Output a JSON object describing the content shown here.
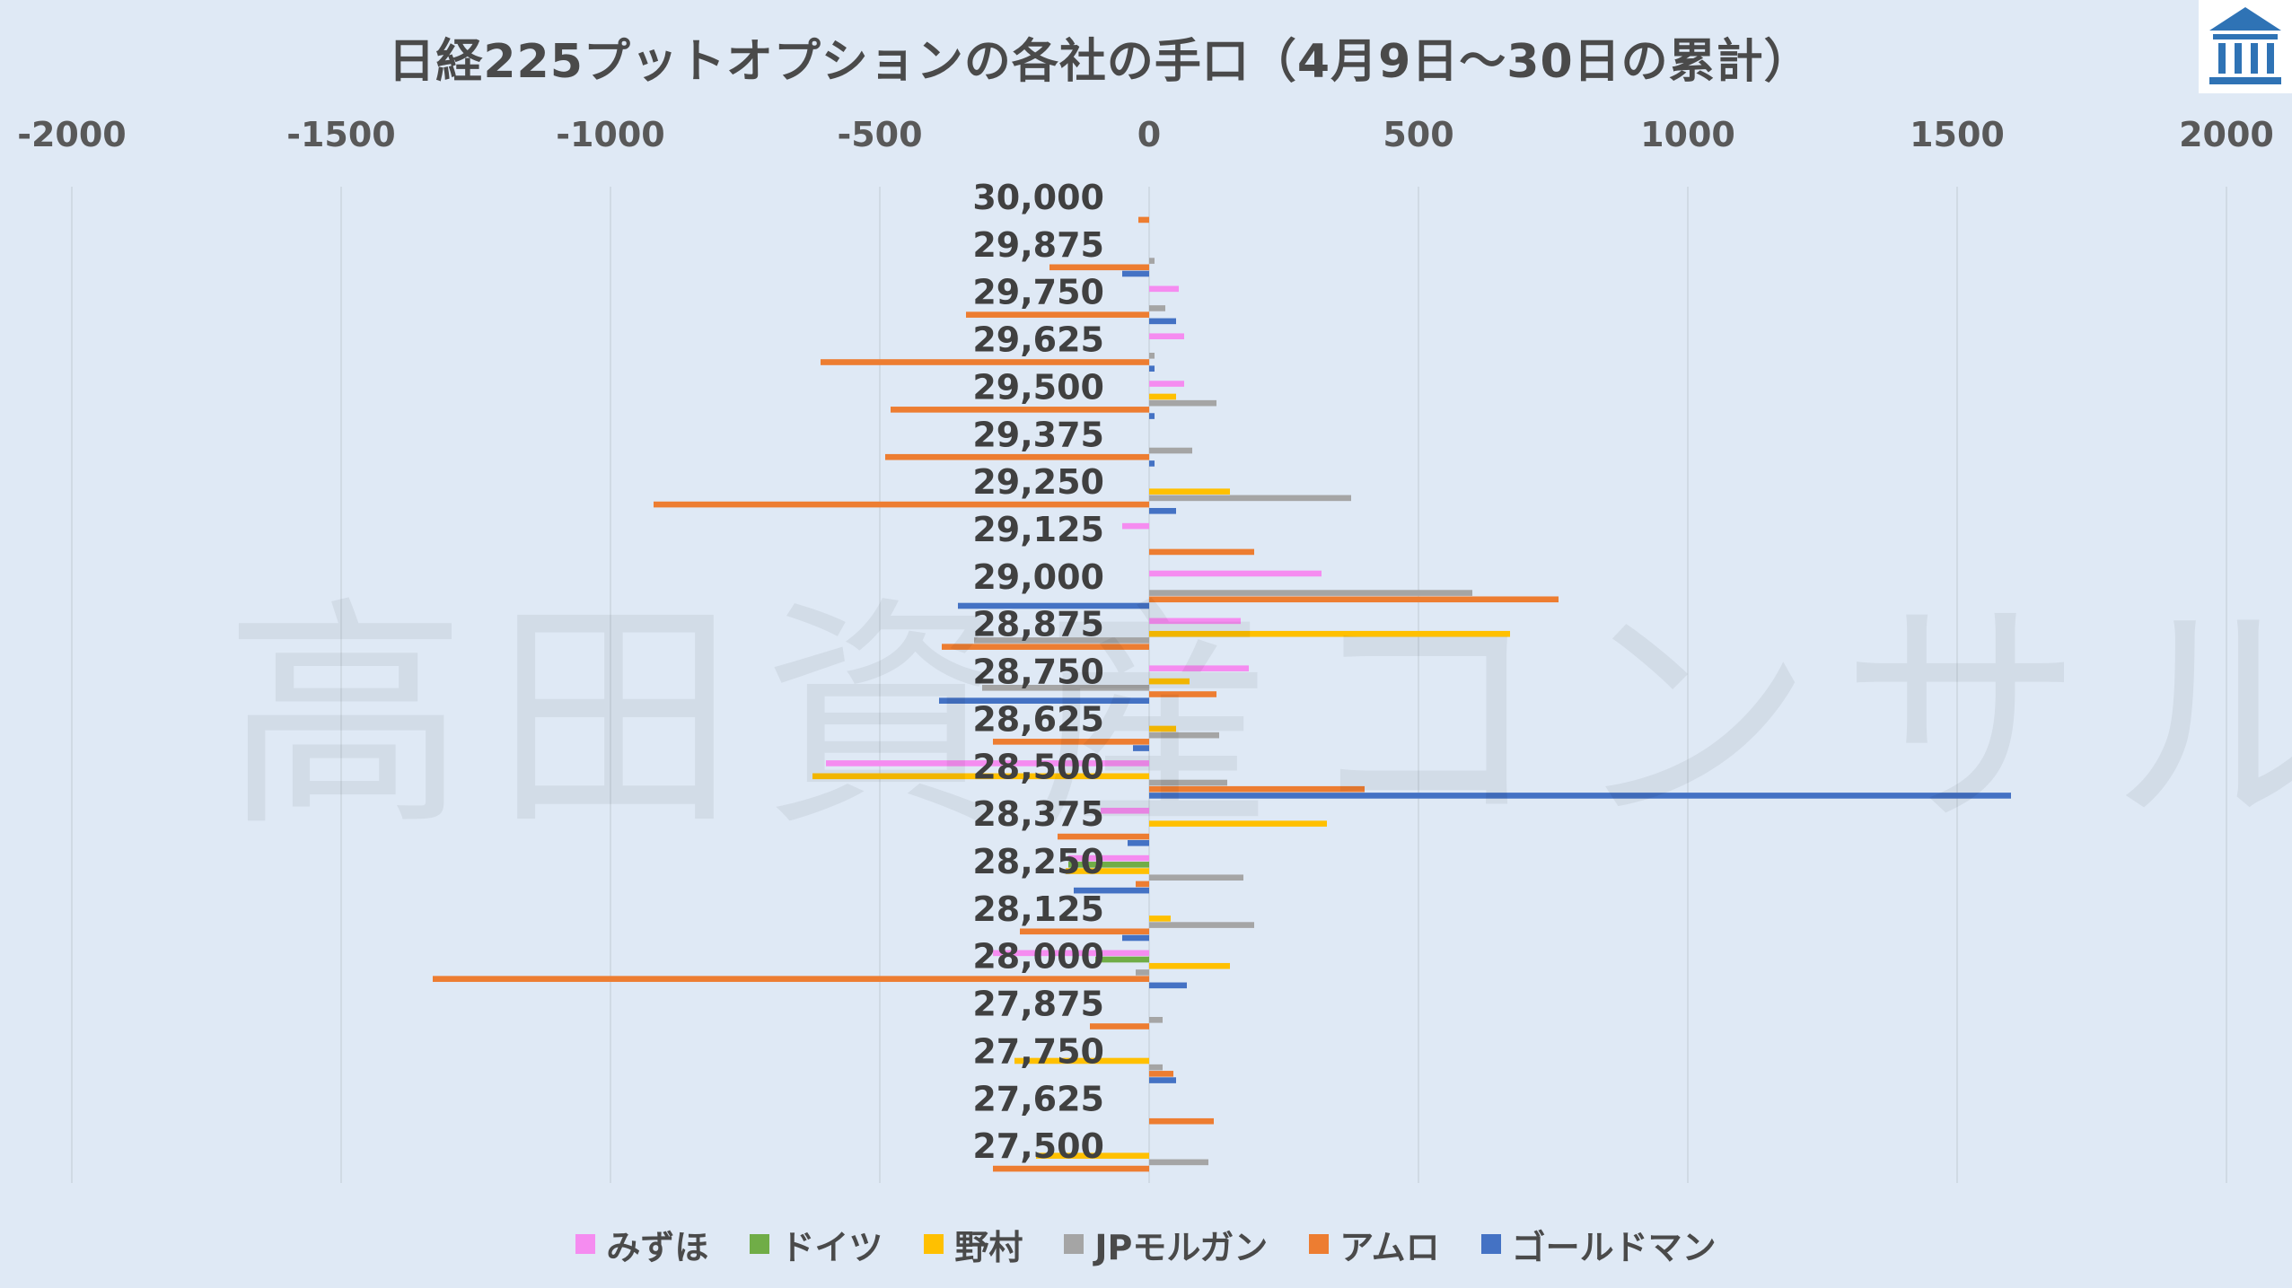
{
  "title": "日経225プットオプションの各社の手口（4月9日〜30日の累計）",
  "watermark": "高田資産コンサル",
  "logo_icon": "building-logo-icon",
  "colors": {
    "background": "#dfe9f5",
    "gridline": "#cbd5df",
    "axis_text": "#595959",
    "みずほ": "#f58cf0",
    "ドイツ": "#70ad47",
    "野村": "#ffc000",
    "JPモルガン": "#a5a5a5",
    "アムロ": "#ed7d31",
    "ゴールドマン": "#4472c4"
  },
  "chart_data": {
    "type": "bar",
    "orientation": "horizontal",
    "title": "日経225プットオプションの各社の手口（4月9日〜30日の累計）",
    "xlim": [
      -2000,
      2000
    ],
    "x_ticks": [
      "-2000",
      "-1500",
      "-1000",
      "-500",
      "0",
      "500",
      "1000",
      "1500",
      "2000"
    ],
    "x_tick_values": [
      -2000,
      -1500,
      -1000,
      -500,
      0,
      500,
      1000,
      1500,
      2000
    ],
    "grid": true,
    "legend_position": "bottom",
    "categories": [
      "30,000",
      "29,875",
      "29,750",
      "29,625",
      "29,500",
      "29,375",
      "29,250",
      "29,125",
      "29,000",
      "28,875",
      "28,750",
      "28,625",
      "28,500",
      "28,375",
      "28,250",
      "28,125",
      "28,000",
      "27,875",
      "27,750",
      "27,625",
      "27,500"
    ],
    "series": [
      {
        "name": "みずほ",
        "color": "#f58cf0",
        "values": [
          0,
          0,
          55,
          65,
          65,
          0,
          0,
          -50,
          320,
          170,
          185,
          0,
          -600,
          -90,
          -150,
          0,
          -290,
          0,
          0,
          0,
          0
        ]
      },
      {
        "name": "ドイツ",
        "color": "#70ad47",
        "values": [
          0,
          0,
          0,
          0,
          0,
          0,
          0,
          0,
          0,
          0,
          0,
          0,
          0,
          0,
          -150,
          0,
          -100,
          0,
          0,
          0,
          0
        ]
      },
      {
        "name": "野村",
        "color": "#ffc000",
        "values": [
          0,
          0,
          0,
          0,
          50,
          0,
          150,
          0,
          0,
          670,
          75,
          50,
          -625,
          330,
          -155,
          40,
          150,
          0,
          -250,
          0,
          -210
        ]
      },
      {
        "name": "JPモルガン",
        "color": "#a5a5a5",
        "values": [
          0,
          10,
          30,
          10,
          125,
          80,
          375,
          0,
          600,
          -325,
          -310,
          130,
          145,
          0,
          175,
          195,
          -25,
          25,
          25,
          0,
          110
        ]
      },
      {
        "name": "アムロ",
        "color": "#ed7d31",
        "values": [
          -20,
          -185,
          -340,
          -610,
          -480,
          -490,
          -920,
          195,
          760,
          -385,
          125,
          -290,
          400,
          -170,
          -25,
          -240,
          -1330,
          -110,
          45,
          120,
          -290
        ]
      },
      {
        "name": "ゴールドマン",
        "color": "#4472c4",
        "values": [
          0,
          -50,
          50,
          10,
          10,
          10,
          50,
          0,
          -355,
          0,
          -390,
          -30,
          1600,
          -40,
          -140,
          -50,
          70,
          0,
          50,
          0,
          0
        ]
      }
    ]
  }
}
